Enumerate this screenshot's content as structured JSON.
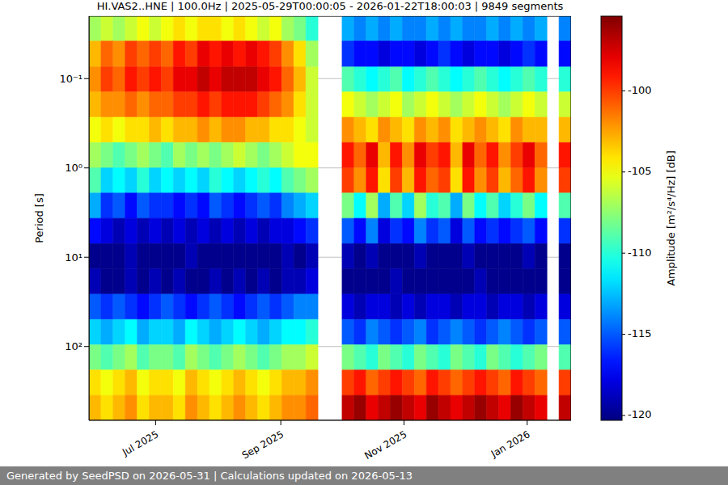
{
  "chart_data": {
    "type": "heatmap",
    "title": "HI.VAS2..HNE | 100.0Hz | 2025-05-29T00:00:05 - 2026-01-22T18:00:03 | 9849 segments",
    "y_label": "Period [s]",
    "log": "y",
    "grid": true,
    "xlim": [
      "2025-05-29T00:00:05",
      "2026-01-22T18:00:03"
    ],
    "xticks": [
      {
        "value": "2025-07-01T00:00:00",
        "label": "Jul 2025"
      },
      {
        "value": "2025-09-01T00:00:00",
        "label": "Sep 2025"
      },
      {
        "value": "2025-11-01T00:00:00",
        "label": "Nov 2025"
      },
      {
        "value": "2026-01-01T00:00:00",
        "label": "Jan 2026"
      }
    ],
    "ylim": [
      0.02,
      670
    ],
    "yticks": [
      {
        "value": 0.1,
        "label": "10⁻¹"
      },
      {
        "value": 1,
        "label": "10⁰"
      },
      {
        "value": 10,
        "label": "10¹"
      },
      {
        "value": 100,
        "label": "10²"
      }
    ],
    "y_edges": [
      0.02,
      0.038,
      0.074,
      0.141,
      0.271,
      0.52,
      1.0,
      1.91,
      3.67,
      7.05,
      13.5,
      25.9,
      49.8,
      95.5,
      183,
      352,
      670
    ],
    "cells": [
      [
        -107,
        -106,
        -107,
        -106,
        -105,
        -106,
        -105,
        -104,
        -105,
        -104,
        -104,
        -105,
        -104,
        -105,
        -106,
        -105,
        -107,
        -108,
        -110,
        null,
        null,
        -113,
        -114,
        -113,
        -114,
        -113,
        -114,
        -114,
        -113,
        -114,
        -113,
        -114,
        -114,
        -113,
        -114,
        -113,
        -114,
        -113,
        null,
        -114
      ],
      [
        -103,
        -101,
        -102,
        -100,
        -101,
        -100,
        -101,
        -99,
        -100,
        -98,
        -99,
        -98,
        -99,
        -98,
        -99,
        -100,
        -102,
        -104,
        -107,
        null,
        null,
        -116,
        -117,
        -117,
        -118,
        -117,
        -117,
        -118,
        -117,
        -116,
        -117,
        -118,
        -117,
        -117,
        -118,
        -117,
        -116,
        -117,
        null,
        -117
      ],
      [
        -102,
        -100,
        -101,
        -99,
        -100,
        -99,
        -100,
        -98,
        -98,
        -97,
        -98,
        -97,
        -97,
        -97,
        -98,
        -99,
        -101,
        -103,
        -106,
        null,
        null,
        -109,
        -110,
        -111,
        -110,
        -109,
        -111,
        -110,
        -109,
        -110,
        -111,
        -110,
        -109,
        -110,
        -111,
        -110,
        -109,
        -110,
        null,
        -110
      ],
      [
        -103,
        -102,
        -102,
        -101,
        -102,
        -101,
        -101,
        -100,
        -100,
        -99,
        -100,
        -99,
        -99,
        -99,
        -100,
        -101,
        -102,
        -104,
        -106,
        null,
        null,
        -105,
        -106,
        -107,
        -106,
        -105,
        -107,
        -106,
        -105,
        -106,
        -107,
        -106,
        -105,
        -106,
        -107,
        -106,
        -105,
        -106,
        null,
        -106
      ],
      [
        -105,
        -104,
        -105,
        -104,
        -104,
        -103,
        -104,
        -103,
        -103,
        -102,
        -103,
        -102,
        -102,
        -103,
        -103,
        -104,
        -104,
        -105,
        -106,
        null,
        null,
        -102,
        -103,
        -104,
        -102,
        -103,
        -104,
        -102,
        -103,
        -102,
        -104,
        -103,
        -102,
        -103,
        -104,
        -102,
        -103,
        -103,
        null,
        -103
      ],
      [
        -107,
        -108,
        -109,
        -108,
        -107,
        -108,
        -109,
        -107,
        -108,
        -107,
        -108,
        -107,
        -106,
        -107,
        -108,
        -107,
        -106,
        -105,
        -105,
        null,
        null,
        -99,
        -101,
        -98,
        -103,
        -99,
        -102,
        -98,
        -100,
        -99,
        -103,
        -98,
        -101,
        -99,
        -102,
        -100,
        -98,
        -101,
        null,
        -99
      ],
      [
        -109,
        -112,
        -111,
        -112,
        -110,
        -112,
        -111,
        -112,
        -111,
        -112,
        -110,
        -111,
        -112,
        -111,
        -110,
        -111,
        -109,
        -108,
        -107,
        null,
        null,
        -100,
        -102,
        -99,
        -104,
        -100,
        -103,
        -99,
        -101,
        -100,
        -104,
        -99,
        -102,
        -100,
        -103,
        -101,
        -99,
        -102,
        null,
        -100
      ],
      [
        -113,
        -116,
        -115,
        -117,
        -115,
        -116,
        -116,
        -117,
        -116,
        -117,
        -115,
        -116,
        -117,
        -116,
        -115,
        -116,
        -114,
        -113,
        -112,
        null,
        null,
        -108,
        -111,
        -107,
        -113,
        -109,
        -112,
        -107,
        -110,
        -109,
        -113,
        -108,
        -111,
        -109,
        -112,
        -110,
        -108,
        -111,
        null,
        -109
      ],
      [
        -117,
        -118,
        -119,
        -118,
        -119,
        -118,
        -119,
        -118,
        -119,
        -118,
        -119,
        -118,
        -119,
        -118,
        -119,
        -118,
        -118,
        -117,
        -116,
        null,
        null,
        -115,
        -117,
        -114,
        -118,
        -116,
        -117,
        -114,
        -116,
        -115,
        -118,
        -115,
        -117,
        -116,
        -117,
        -116,
        -115,
        -117,
        null,
        -116
      ],
      [
        -120,
        -120,
        -120,
        -119,
        -120,
        -120,
        -120,
        -120,
        -119,
        -120,
        -120,
        -120,
        -120,
        -120,
        -120,
        -120,
        -119,
        -120,
        -119,
        null,
        null,
        -119,
        -120,
        -119,
        -120,
        -120,
        -120,
        -119,
        -120,
        -120,
        -120,
        -119,
        -120,
        -120,
        -120,
        -120,
        -119,
        -120,
        null,
        -120
      ],
      [
        -119,
        -120,
        -120,
        -119,
        -120,
        -119,
        -120,
        -119,
        -120,
        -120,
        -119,
        -120,
        -119,
        -120,
        -119,
        -120,
        -119,
        -119,
        -118,
        null,
        null,
        -120,
        -120,
        -120,
        -120,
        -119,
        -120,
        -120,
        -120,
        -120,
        -120,
        -120,
        -119,
        -120,
        -120,
        -120,
        -120,
        -120,
        null,
        -120
      ],
      [
        -115,
        -116,
        -115,
        -116,
        -117,
        -116,
        -115,
        -116,
        -117,
        -116,
        -115,
        -116,
        -117,
        -116,
        -115,
        -116,
        -115,
        -114,
        -114,
        null,
        null,
        -118,
        -119,
        -118,
        -118,
        -119,
        -118,
        -119,
        -118,
        -118,
        -119,
        -118,
        -118,
        -119,
        -118,
        -118,
        -119,
        -118,
        null,
        -118
      ],
      [
        -112,
        -113,
        -112,
        -111,
        -113,
        -112,
        -112,
        -113,
        -111,
        -112,
        -113,
        -112,
        -111,
        -112,
        -113,
        -112,
        -111,
        -111,
        -110,
        null,
        null,
        -115,
        -116,
        -114,
        -115,
        -116,
        -115,
        -114,
        -116,
        -115,
        -114,
        -115,
        -116,
        -115,
        -114,
        -115,
        -116,
        -115,
        null,
        -115
      ],
      [
        -108,
        -109,
        -108,
        -107,
        -109,
        -108,
        -108,
        -109,
        -107,
        -108,
        -109,
        -108,
        -107,
        -108,
        -109,
        -108,
        -107,
        -107,
        -106,
        null,
        null,
        -108,
        -109,
        -110,
        -108,
        -109,
        -110,
        -108,
        -109,
        -110,
        -108,
        -109,
        -110,
        -108,
        -109,
        -110,
        -109,
        -108,
        null,
        -109
      ],
      [
        -104,
        -105,
        -104,
        -103,
        -105,
        -104,
        -104,
        -105,
        -103,
        -104,
        -105,
        -104,
        -103,
        -104,
        -105,
        -104,
        -103,
        -103,
        -102,
        null,
        null,
        -100,
        -99,
        -101,
        -100,
        -99,
        -100,
        -101,
        -99,
        -100,
        -101,
        -100,
        -99,
        -100,
        -101,
        -99,
        -100,
        -101,
        null,
        -100
      ],
      [
        -103,
        -104,
        -103,
        -102,
        -104,
        -103,
        -103,
        -104,
        -102,
        -103,
        -104,
        -103,
        -102,
        -103,
        -104,
        -103,
        -102,
        -102,
        -101,
        null,
        null,
        -97,
        -96,
        -98,
        -97,
        -96,
        -97,
        -98,
        -96,
        -97,
        -98,
        -97,
        -96,
        -97,
        -98,
        -96,
        -97,
        -98,
        null,
        -97
      ]
    ],
    "colorbar": {
      "label": "Amplitude [m²/s⁴/Hz] [dB]",
      "range": [
        -120.3,
        -95.4
      ],
      "ticks": [
        -120,
        -115,
        -110,
        -105,
        -100
      ]
    },
    "footer": "Generated by SeedPSD on 2026-05-31 | Calculations updated on 2026-05-13"
  }
}
